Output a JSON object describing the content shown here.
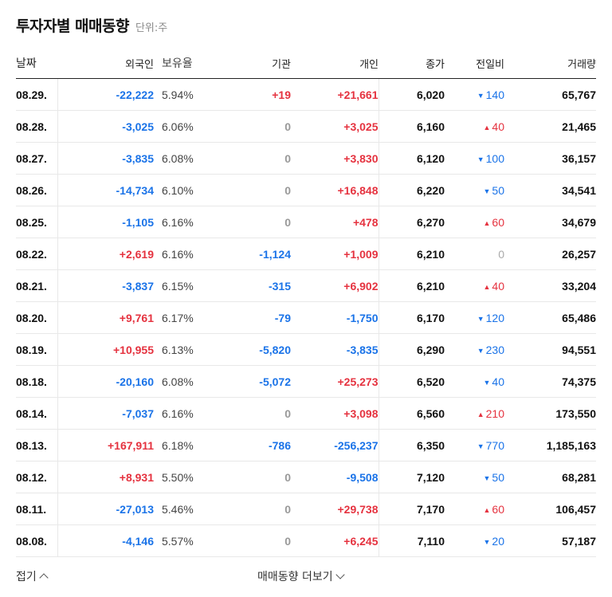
{
  "header": {
    "title": "투자자별 매매동향",
    "unit": "단위:주"
  },
  "columns": {
    "date": "날짜",
    "foreign": "외국인",
    "holding": "보유율",
    "institution": "기관",
    "individual": "개인",
    "close": "종가",
    "change": "전일비",
    "volume": "거래량"
  },
  "rows": [
    {
      "date": "08.29.",
      "foreign": "-22,222",
      "holding": "5.94%",
      "institution": "+19",
      "individual": "+21,661",
      "close": "6,020",
      "change_dir": "down",
      "change": "140",
      "volume": "65,767"
    },
    {
      "date": "08.28.",
      "foreign": "-3,025",
      "holding": "6.06%",
      "institution": "0",
      "individual": "+3,025",
      "close": "6,160",
      "change_dir": "up",
      "change": "40",
      "volume": "21,465"
    },
    {
      "date": "08.27.",
      "foreign": "-3,835",
      "holding": "6.08%",
      "institution": "0",
      "individual": "+3,830",
      "close": "6,120",
      "change_dir": "down",
      "change": "100",
      "volume": "36,157"
    },
    {
      "date": "08.26.",
      "foreign": "-14,734",
      "holding": "6.10%",
      "institution": "0",
      "individual": "+16,848",
      "close": "6,220",
      "change_dir": "down",
      "change": "50",
      "volume": "34,541"
    },
    {
      "date": "08.25.",
      "foreign": "-1,105",
      "holding": "6.16%",
      "institution": "0",
      "individual": "+478",
      "close": "6,270",
      "change_dir": "up",
      "change": "60",
      "volume": "34,679"
    },
    {
      "date": "08.22.",
      "foreign": "+2,619",
      "holding": "6.16%",
      "institution": "-1,124",
      "individual": "+1,009",
      "close": "6,210",
      "change_dir": "none",
      "change": "0",
      "volume": "26,257"
    },
    {
      "date": "08.21.",
      "foreign": "-3,837",
      "holding": "6.15%",
      "institution": "-315",
      "individual": "+6,902",
      "close": "6,210",
      "change_dir": "up",
      "change": "40",
      "volume": "33,204"
    },
    {
      "date": "08.20.",
      "foreign": "+9,761",
      "holding": "6.17%",
      "institution": "-79",
      "individual": "-1,750",
      "close": "6,170",
      "change_dir": "down",
      "change": "120",
      "volume": "65,486"
    },
    {
      "date": "08.19.",
      "foreign": "+10,955",
      "holding": "6.13%",
      "institution": "-5,820",
      "individual": "-3,835",
      "close": "6,290",
      "change_dir": "down",
      "change": "230",
      "volume": "94,551"
    },
    {
      "date": "08.18.",
      "foreign": "-20,160",
      "holding": "6.08%",
      "institution": "-5,072",
      "individual": "+25,273",
      "close": "6,520",
      "change_dir": "down",
      "change": "40",
      "volume": "74,375"
    },
    {
      "date": "08.14.",
      "foreign": "-7,037",
      "holding": "6.16%",
      "institution": "0",
      "individual": "+3,098",
      "close": "6,560",
      "change_dir": "up",
      "change": "210",
      "volume": "173,550"
    },
    {
      "date": "08.13.",
      "foreign": "+167,911",
      "holding": "6.18%",
      "institution": "-786",
      "individual": "-256,237",
      "close": "6,350",
      "change_dir": "down",
      "change": "770",
      "volume": "1,185,163"
    },
    {
      "date": "08.12.",
      "foreign": "+8,931",
      "holding": "5.50%",
      "institution": "0",
      "individual": "-9,508",
      "close": "7,120",
      "change_dir": "down",
      "change": "50",
      "volume": "68,281"
    },
    {
      "date": "08.11.",
      "foreign": "-27,013",
      "holding": "5.46%",
      "institution": "0",
      "individual": "+29,738",
      "close": "7,170",
      "change_dir": "up",
      "change": "60",
      "volume": "106,457"
    },
    {
      "date": "08.08.",
      "foreign": "-4,146",
      "holding": "5.57%",
      "institution": "0",
      "individual": "+6,245",
      "close": "7,110",
      "change_dir": "down",
      "change": "20",
      "volume": "57,187"
    }
  ],
  "footer": {
    "fold_label": "접기",
    "more_label": "매매동향 더보기"
  },
  "colors": {
    "positive": "#e5323f",
    "negative": "#1a73e8",
    "zero": "#999999"
  }
}
